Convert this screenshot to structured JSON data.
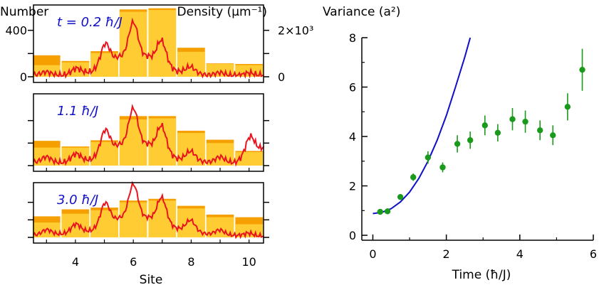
{
  "colors": {
    "bar_light": "#ffcc33",
    "bar_dark": "#f5a000",
    "density_line": "#e8141e",
    "panel_label": "#1010c8",
    "model_curve": "#1010c8",
    "variance_points": "#1a9a1a"
  },
  "chart_data": [
    {
      "type": "bar",
      "panels": [
        {
          "label": "t = 0.2 ħ/J",
          "categories": [
            3,
            4,
            5,
            6,
            7,
            8,
            9,
            10
          ],
          "series": [
            {
              "values": [
                185,
                136,
                220,
                580,
                590,
                250,
                115,
                110
              ]
            },
            {
              "values": [
                100,
                125,
                205,
                560,
                575,
                215,
                110,
                100
              ]
            }
          ],
          "density_y": [
            40,
            30,
            95,
            390,
            395,
            105,
            35,
            25,
            30
          ]
        },
        {
          "label": "1.1 ħ/J",
          "categories": [
            3,
            4,
            5,
            6,
            7,
            8,
            9,
            10
          ],
          "series": [
            {
              "values": [
                220,
                170,
                225,
                440,
                440,
                310,
                230,
                130
              ]
            },
            {
              "values": [
                160,
                160,
                210,
                410,
                420,
                290,
                200,
                120
              ]
            }
          ],
          "density_y": [
            70,
            60,
            120,
            420,
            430,
            140,
            70,
            60,
            360
          ]
        },
        {
          "label": "3.0 ħ/J",
          "categories": [
            3,
            4,
            5,
            6,
            7,
            8,
            9,
            10
          ],
          "series": [
            {
              "values": [
                240,
                320,
                340,
                420,
                440,
                360,
                260,
                230
              ]
            },
            {
              "values": [
                170,
                270,
                310,
                400,
                420,
                330,
                230,
                150
              ]
            }
          ],
          "density_y": [
            60,
            90,
            170,
            500,
            510,
            230,
            90,
            50,
            30
          ]
        }
      ],
      "xlabel": "Site",
      "ylabel_left": "Number",
      "ylabel_right": "Density (μm⁻¹)",
      "x_ticks": [
        "4",
        "6",
        "8",
        "10"
      ],
      "y_ticks_left": [
        "400",
        "0"
      ],
      "y_ticks_right": [
        "2×10³",
        "0"
      ],
      "xlim": [
        2.55,
        10.5
      ],
      "ylim": [
        0,
        600
      ]
    },
    {
      "type": "scatter",
      "title": "Variance (a²)",
      "xlabel": "Time (ħ/J)",
      "x_ticks": [
        "0",
        "2",
        "4",
        "6"
      ],
      "y_ticks": [
        "0",
        "2",
        "4",
        "6",
        "8"
      ],
      "xlim": [
        -0.3,
        6
      ],
      "ylim": [
        -0.2,
        8
      ],
      "series": [
        {
          "x": [
            0.2,
            0.4,
            0.75,
            1.1,
            1.5,
            1.9,
            2.3,
            2.65,
            3.05,
            3.4,
            3.8,
            4.15,
            4.55,
            4.9,
            5.3,
            5.7
          ],
          "y": [
            0.95,
            0.97,
            1.55,
            2.35,
            3.15,
            2.75,
            3.7,
            3.85,
            4.45,
            4.15,
            4.7,
            4.6,
            4.25,
            4.05,
            5.2,
            6.7
          ],
          "err": [
            0.05,
            0.05,
            0.1,
            0.15,
            0.25,
            0.2,
            0.35,
            0.35,
            0.4,
            0.35,
            0.45,
            0.45,
            0.4,
            0.4,
            0.55,
            0.85
          ]
        }
      ],
      "curve": {
        "x": [
          0,
          0.25,
          0.5,
          0.75,
          1.0,
          1.25,
          1.5,
          1.75,
          2.0,
          2.25,
          2.5,
          2.65
        ],
        "y": [
          0.88,
          0.93,
          1.08,
          1.35,
          1.75,
          2.3,
          3.0,
          3.85,
          4.85,
          6.0,
          7.2,
          8.0
        ]
      }
    }
  ]
}
